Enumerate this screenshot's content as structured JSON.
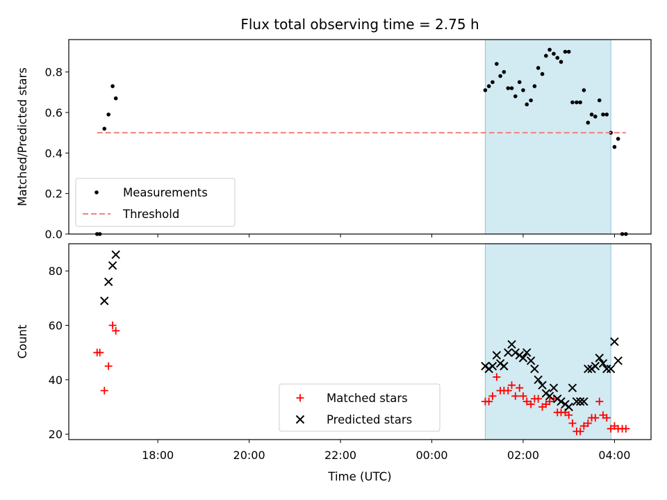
{
  "chart_data": [
    {
      "type": "scatter",
      "title": "Flux total observing time = 2.75 h",
      "ylabel": "Matched/Predicted stars",
      "xlabel": "",
      "x_unit": "hours since 00:00 UTC",
      "xlim": [
        -7.95,
        4.8
      ],
      "ylim": [
        0.0,
        0.96
      ],
      "yticks": [
        0.0,
        0.2,
        0.4,
        0.6,
        0.8
      ],
      "ytick_labels": [
        "0.0",
        "0.2",
        "0.4",
        "0.6",
        "0.8"
      ],
      "shaded_span": {
        "x": [
          1.17,
          3.92
        ],
        "color": "#add8e6"
      },
      "legend": {
        "position": "lower-left",
        "entries": [
          "Measurements",
          "Threshold"
        ]
      },
      "series": [
        {
          "name": "Measurements",
          "marker": "dot",
          "color": "#000000",
          "points": [
            [
              -7.33,
              0.0
            ],
            [
              -7.27,
              0.0
            ],
            [
              -7.17,
              0.52
            ],
            [
              -7.08,
              0.59
            ],
            [
              -6.99,
              0.73
            ],
            [
              -6.92,
              0.67
            ],
            [
              1.17,
              0.71
            ],
            [
              1.25,
              0.73
            ],
            [
              1.33,
              0.75
            ],
            [
              1.42,
              0.84
            ],
            [
              1.5,
              0.78
            ],
            [
              1.58,
              0.8
            ],
            [
              1.67,
              0.72
            ],
            [
              1.75,
              0.72
            ],
            [
              1.83,
              0.68
            ],
            [
              1.92,
              0.75
            ],
            [
              2.0,
              0.71
            ],
            [
              2.08,
              0.64
            ],
            [
              2.17,
              0.66
            ],
            [
              2.25,
              0.73
            ],
            [
              2.33,
              0.82
            ],
            [
              2.42,
              0.79
            ],
            [
              2.5,
              0.88
            ],
            [
              2.58,
              0.91
            ],
            [
              2.67,
              0.89
            ],
            [
              2.75,
              0.87
            ],
            [
              2.83,
              0.85
            ],
            [
              2.92,
              0.9
            ],
            [
              3.0,
              0.9
            ],
            [
              3.08,
              0.65
            ],
            [
              3.17,
              0.65
            ],
            [
              3.25,
              0.65
            ],
            [
              3.33,
              0.71
            ],
            [
              3.42,
              0.55
            ],
            [
              3.5,
              0.59
            ],
            [
              3.58,
              0.58
            ],
            [
              3.67,
              0.66
            ],
            [
              3.75,
              0.59
            ],
            [
              3.83,
              0.59
            ],
            [
              3.92,
              0.5
            ],
            [
              4.0,
              0.43
            ],
            [
              4.08,
              0.47
            ],
            [
              4.17,
              0.0
            ],
            [
              4.25,
              0.0
            ]
          ]
        },
        {
          "name": "Threshold",
          "style": "dashed",
          "color": "#f08080",
          "points": [
            [
              -7.33,
              0.5
            ],
            [
              4.25,
              0.5
            ]
          ]
        }
      ]
    },
    {
      "type": "scatter",
      "title": "",
      "ylabel": "Count",
      "xlabel": "Time (UTC)",
      "x_unit": "hours since 00:00 UTC",
      "xlim": [
        -7.95,
        4.8
      ],
      "ylim": [
        18,
        90
      ],
      "yticks": [
        20,
        40,
        60,
        80
      ],
      "ytick_labels": [
        "20",
        "40",
        "60",
        "80"
      ],
      "xticks": [
        -6,
        -4,
        -2,
        0,
        2,
        4
      ],
      "xtick_labels": [
        "18:00",
        "20:00",
        "22:00",
        "00:00",
        "02:00",
        "04:00"
      ],
      "shaded_span": {
        "x": [
          1.17,
          3.92
        ],
        "color": "#add8e6"
      },
      "legend": {
        "position": "lower-center",
        "entries": [
          "Matched stars",
          "Predicted stars"
        ]
      },
      "series": [
        {
          "name": "Matched stars",
          "marker": "plus",
          "color": "#ff0000",
          "points": [
            [
              -7.33,
              50
            ],
            [
              -7.27,
              50
            ],
            [
              -7.17,
              36
            ],
            [
              -7.08,
              45
            ],
            [
              -6.99,
              60
            ],
            [
              -6.92,
              58
            ],
            [
              1.17,
              32
            ],
            [
              1.25,
              32
            ],
            [
              1.33,
              34
            ],
            [
              1.42,
              41
            ],
            [
              1.5,
              36
            ],
            [
              1.58,
              36
            ],
            [
              1.67,
              36
            ],
            [
              1.75,
              38
            ],
            [
              1.83,
              34
            ],
            [
              1.92,
              37
            ],
            [
              2.0,
              34
            ],
            [
              2.08,
              32
            ],
            [
              2.17,
              31
            ],
            [
              2.25,
              33
            ],
            [
              2.33,
              33
            ],
            [
              2.42,
              30
            ],
            [
              2.5,
              31
            ],
            [
              2.58,
              32
            ],
            [
              2.67,
              33
            ],
            [
              2.75,
              28
            ],
            [
              2.83,
              28
            ],
            [
              2.92,
              28
            ],
            [
              3.0,
              27
            ],
            [
              3.08,
              24
            ],
            [
              3.17,
              21
            ],
            [
              3.25,
              21
            ],
            [
              3.33,
              23
            ],
            [
              3.42,
              24
            ],
            [
              3.5,
              26
            ],
            [
              3.58,
              26
            ],
            [
              3.67,
              32
            ],
            [
              3.75,
              27
            ],
            [
              3.83,
              26
            ],
            [
              3.92,
              22
            ],
            [
              4.0,
              23
            ],
            [
              4.08,
              22
            ],
            [
              4.17,
              22
            ],
            [
              4.25,
              22
            ]
          ]
        },
        {
          "name": "Predicted stars",
          "marker": "x",
          "color": "#000000",
          "points": [
            [
              -7.17,
              69
            ],
            [
              -7.08,
              76
            ],
            [
              -6.99,
              82
            ],
            [
              -6.92,
              86
            ],
            [
              1.17,
              45
            ],
            [
              1.25,
              44
            ],
            [
              1.33,
              45
            ],
            [
              1.42,
              49
            ],
            [
              1.5,
              46
            ],
            [
              1.58,
              45
            ],
            [
              1.67,
              50
            ],
            [
              1.75,
              53
            ],
            [
              1.83,
              50
            ],
            [
              1.92,
              49
            ],
            [
              2.0,
              48
            ],
            [
              2.08,
              50
            ],
            [
              2.17,
              47
            ],
            [
              2.25,
              44
            ],
            [
              2.33,
              40
            ],
            [
              2.42,
              38
            ],
            [
              2.5,
              35
            ],
            [
              2.58,
              34
            ],
            [
              2.67,
              37
            ],
            [
              2.75,
              33
            ],
            [
              2.83,
              32
            ],
            [
              2.92,
              31
            ],
            [
              3.0,
              30
            ],
            [
              3.08,
              37
            ],
            [
              3.17,
              32
            ],
            [
              3.25,
              32
            ],
            [
              3.33,
              32
            ],
            [
              3.42,
              44
            ],
            [
              3.5,
              44
            ],
            [
              3.58,
              45
            ],
            [
              3.67,
              48
            ],
            [
              3.75,
              46
            ],
            [
              3.83,
              44
            ],
            [
              3.92,
              44
            ],
            [
              4.0,
              54
            ],
            [
              4.08,
              47
            ]
          ]
        }
      ]
    }
  ]
}
